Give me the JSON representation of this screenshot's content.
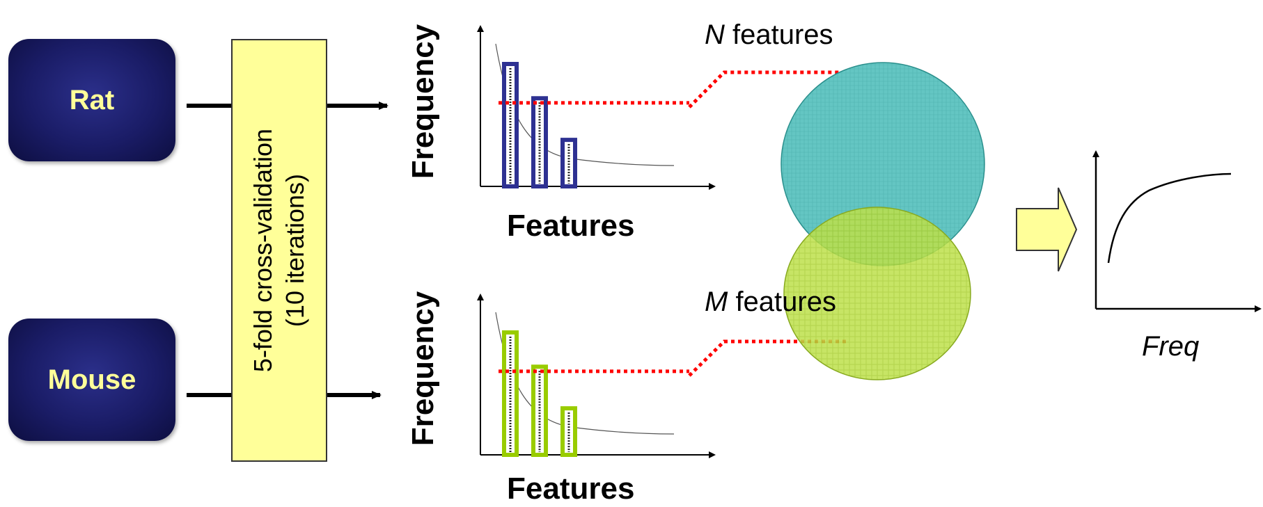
{
  "species": {
    "rat": "Rat",
    "mouse": "Mouse"
  },
  "cross_validation": {
    "line1": "5-fold cross-validation",
    "line2": "(10 iterations)"
  },
  "histograms": {
    "top": {
      "ylabel": "Frequency",
      "xlabel": "Features",
      "bar_heights": [
        1.0,
        0.72,
        0.38
      ],
      "threshold": 0.65
    },
    "bottom": {
      "ylabel": "Frequency",
      "xlabel": "Features",
      "bar_heights": [
        1.0,
        0.72,
        0.38
      ],
      "threshold": 0.65
    }
  },
  "feature_sets": {
    "n": {
      "var": "N",
      "text": " features"
    },
    "m": {
      "var": "M",
      "text": " features"
    }
  },
  "result_plot": {
    "xlabel": "Freq"
  },
  "colors": {
    "species_box": "#1f2170",
    "species_text": "#ffff99",
    "cv_box": "#ffff99",
    "top_bars": "#2e3192",
    "bottom_bars": "#99cc00",
    "threshold_line": "#ff0000",
    "circle_n": "#5cc2c0",
    "circle_m": "#b5dc3c",
    "arrow_fill": "#ffff99"
  },
  "icons": {
    "flow_arrow": "arrow-right-icon",
    "result_arrow": "block-arrow-right-icon"
  }
}
